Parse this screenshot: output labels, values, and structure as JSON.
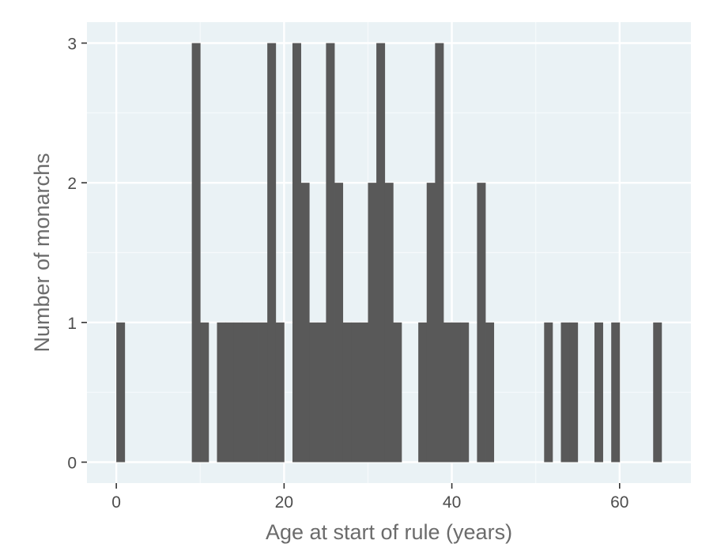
{
  "chart_data": {
    "type": "bar",
    "title": "",
    "xlabel": "Age at start of rule (years)",
    "ylabel": "Number of monarchs",
    "xlim": [
      -3.5,
      68.5
    ],
    "ylim": [
      -0.15,
      3.15
    ],
    "x_ticks": [
      0,
      20,
      40,
      60
    ],
    "x_tick_labels": [
      "0",
      "20",
      "40",
      "60"
    ],
    "y_ticks": [
      0,
      1,
      2,
      3
    ],
    "y_tick_labels": [
      "0",
      "1",
      "2",
      "3"
    ],
    "bin_width": 1,
    "bins": [
      {
        "x": 0,
        "count": 1
      },
      {
        "x": 9,
        "count": 3
      },
      {
        "x": 10,
        "count": 1
      },
      {
        "x": 12,
        "count": 1
      },
      {
        "x": 13,
        "count": 1
      },
      {
        "x": 14,
        "count": 1
      },
      {
        "x": 15,
        "count": 1
      },
      {
        "x": 16,
        "count": 1
      },
      {
        "x": 17,
        "count": 1
      },
      {
        "x": 18,
        "count": 3
      },
      {
        "x": 19,
        "count": 1
      },
      {
        "x": 21,
        "count": 3
      },
      {
        "x": 22,
        "count": 2
      },
      {
        "x": 23,
        "count": 1
      },
      {
        "x": 24,
        "count": 1
      },
      {
        "x": 25,
        "count": 3
      },
      {
        "x": 26,
        "count": 2
      },
      {
        "x": 27,
        "count": 1
      },
      {
        "x": 28,
        "count": 1
      },
      {
        "x": 29,
        "count": 1
      },
      {
        "x": 30,
        "count": 2
      },
      {
        "x": 31,
        "count": 3
      },
      {
        "x": 32,
        "count": 2
      },
      {
        "x": 33,
        "count": 1
      },
      {
        "x": 36,
        "count": 1
      },
      {
        "x": 37,
        "count": 2
      },
      {
        "x": 38,
        "count": 3
      },
      {
        "x": 39,
        "count": 1
      },
      {
        "x": 40,
        "count": 1
      },
      {
        "x": 41,
        "count": 1
      },
      {
        "x": 43,
        "count": 2
      },
      {
        "x": 44,
        "count": 1
      },
      {
        "x": 51,
        "count": 1
      },
      {
        "x": 53,
        "count": 1
      },
      {
        "x": 54,
        "count": 1
      },
      {
        "x": 57,
        "count": 1
      },
      {
        "x": 59,
        "count": 1
      },
      {
        "x": 64,
        "count": 1
      }
    ],
    "grid": true,
    "colors": {
      "panel_background": "#eaf2f5",
      "grid_major": "#ffffff",
      "grid_minor": "#f6fafb",
      "bar_fill": "#595959",
      "tick_mark": "#333333"
    }
  }
}
